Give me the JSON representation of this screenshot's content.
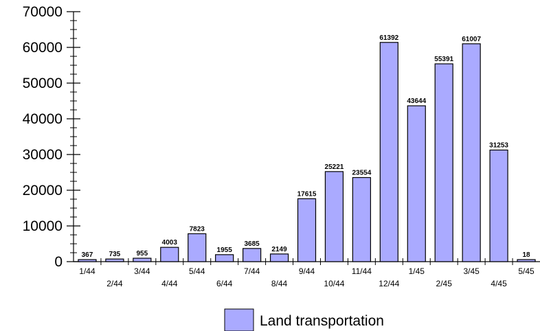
{
  "chart_data": {
    "type": "bar",
    "categories": [
      "1/44",
      "2/44",
      "3/44",
      "4/44",
      "5/44",
      "6/44",
      "7/44",
      "8/44",
      "9/44",
      "10/44",
      "11/44",
      "12/44",
      "1/45",
      "2/45",
      "3/45",
      "4/45",
      "5/45"
    ],
    "series": [
      {
        "name": "Land transportation",
        "values": [
          367,
          735,
          955,
          4003,
          7823,
          1955,
          3685,
          2149,
          17615,
          25221,
          23554,
          61392,
          43644,
          55391,
          61007,
          31253,
          18
        ],
        "color": "#aaaaff"
      }
    ],
    "ylim": [
      0,
      70000
    ],
    "yticks": [
      0,
      10000,
      20000,
      30000,
      40000,
      50000,
      60000,
      70000
    ],
    "grid": false,
    "data_labels": true,
    "legend": "bottom"
  }
}
